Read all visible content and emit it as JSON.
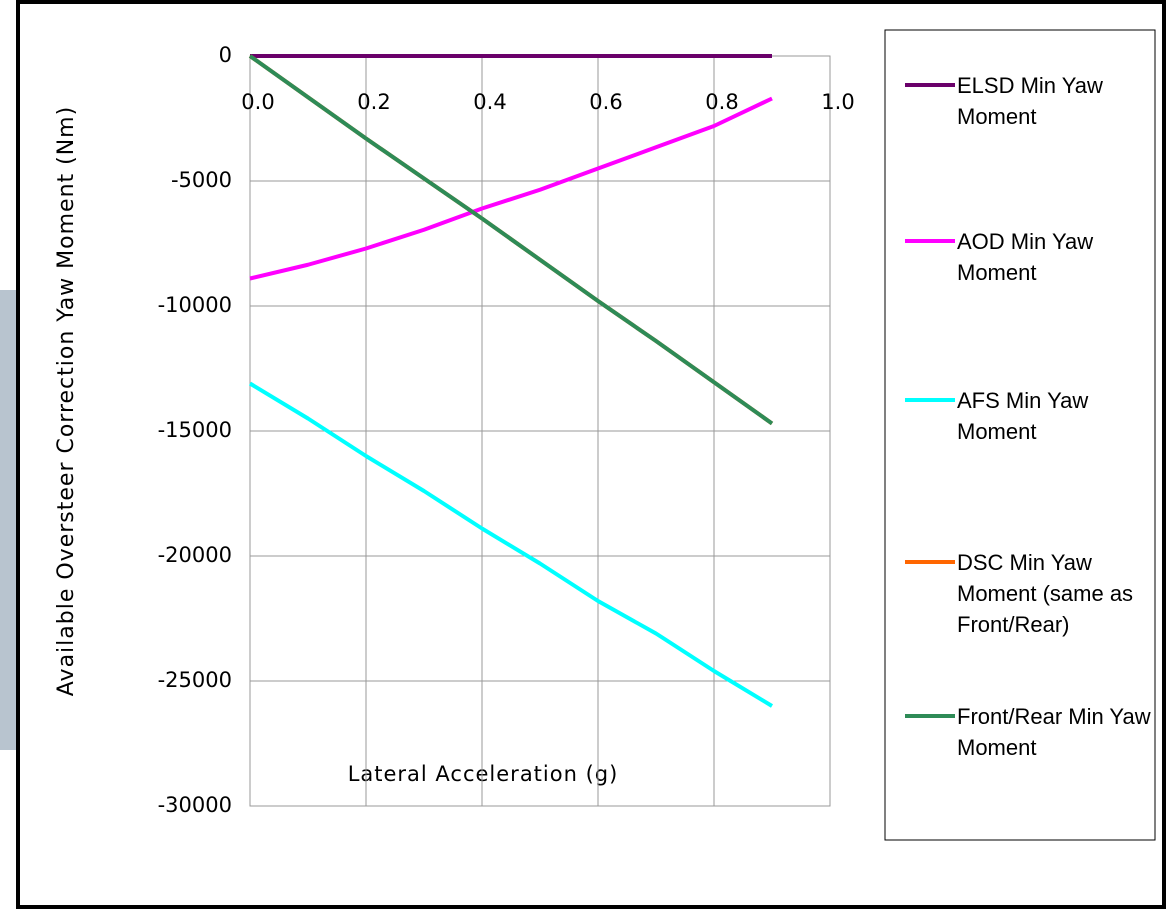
{
  "chart_data": {
    "type": "line",
    "x_label": "Lateral Acceleration (g)",
    "y_label": "Available Oversteer Correction Yaw Moment (Nm)",
    "x": [
      0,
      0.1,
      0.2,
      0.3,
      0.4,
      0.5,
      0.6,
      0.7,
      0.8,
      0.9
    ],
    "series": [
      {
        "name": "ELSD Min Yaw Moment",
        "color": "#6a006a",
        "values": [
          0,
          0,
          0,
          0,
          0,
          0,
          0,
          0,
          0,
          0
        ]
      },
      {
        "name": "AOD Min Yaw Moment",
        "color": "#ff00ff",
        "values": [
          -8900,
          -8350,
          -7700,
          -6950,
          -6100,
          -5350,
          -4500,
          -3650,
          -2800,
          -1700
        ]
      },
      {
        "name": "AFS Min Yaw Moment",
        "color": "#00ffff",
        "values": [
          -13100,
          -14500,
          -16000,
          -17400,
          -18900,
          -20300,
          -21800,
          -23100,
          -24600,
          -26000
        ]
      },
      {
        "name": "DSC Min Yaw Moment (same as Front/Rear)",
        "color": "#ff6600",
        "values": [
          0,
          -1650,
          -3300,
          -4900,
          -6500,
          -8150,
          -9800,
          -11400,
          -13050,
          -14700
        ]
      },
      {
        "name": "Front/Rear Min Yaw Moment",
        "color": "#2e8b57",
        "values": [
          0,
          -1650,
          -3300,
          -4900,
          -6500,
          -8150,
          -9800,
          -11400,
          -13050,
          -14700
        ]
      }
    ],
    "xlim": [
      0,
      1
    ],
    "xticks": [
      {
        "value": 0,
        "label": "0.0"
      },
      0.2,
      0.4,
      0.6,
      0.8,
      {
        "value": 1,
        "label": "1.0"
      }
    ],
    "ylim": [
      -30000,
      0
    ],
    "yticks": [
      -30000,
      -25000,
      -20000,
      -15000,
      -10000,
      -5000,
      0
    ],
    "grid": true
  }
}
